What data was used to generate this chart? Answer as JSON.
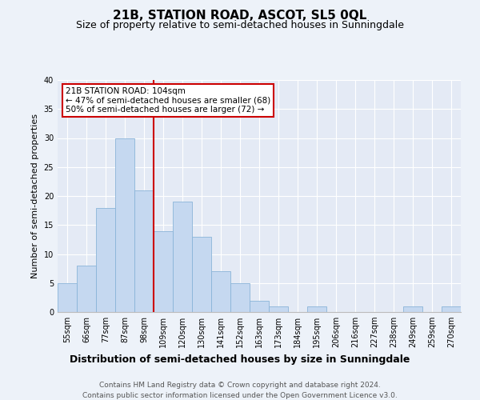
{
  "title": "21B, STATION ROAD, ASCOT, SL5 0QL",
  "subtitle": "Size of property relative to semi-detached houses in Sunningdale",
  "xlabel": "Distribution of semi-detached houses by size in Sunningdale",
  "ylabel": "Number of semi-detached properties",
  "footnote1": "Contains HM Land Registry data © Crown copyright and database right 2024.",
  "footnote2": "Contains public sector information licensed under the Open Government Licence v3.0.",
  "categories": [
    "55sqm",
    "66sqm",
    "77sqm",
    "87sqm",
    "98sqm",
    "109sqm",
    "120sqm",
    "130sqm",
    "141sqm",
    "152sqm",
    "163sqm",
    "173sqm",
    "184sqm",
    "195sqm",
    "206sqm",
    "216sqm",
    "227sqm",
    "238sqm",
    "249sqm",
    "259sqm",
    "270sqm"
  ],
  "values": [
    5,
    8,
    18,
    30,
    21,
    14,
    19,
    13,
    7,
    5,
    2,
    1,
    0,
    1,
    0,
    0,
    0,
    0,
    1,
    0,
    1
  ],
  "bar_color": "#c5d8f0",
  "bar_edge_color": "#8ab4d8",
  "vline_x": 4.5,
  "vline_label": "21B STATION ROAD: 104sqm",
  "annotation_line1": "← 47% of semi-detached houses are smaller (68)",
  "annotation_line2": "50% of semi-detached houses are larger (72) →",
  "annotation_box_color": "#ffffff",
  "annotation_box_edge": "#cc0000",
  "vline_color": "#cc0000",
  "ylim": [
    0,
    40
  ],
  "yticks": [
    0,
    5,
    10,
    15,
    20,
    25,
    30,
    35,
    40
  ],
  "background_color": "#edf2f9",
  "plot_background": "#e4eaf5",
  "grid_color": "#ffffff",
  "title_fontsize": 11,
  "subtitle_fontsize": 9,
  "xlabel_fontsize": 9,
  "ylabel_fontsize": 8,
  "tick_fontsize": 7,
  "footnote_fontsize": 6.5,
  "annotation_fontsize": 7.5
}
